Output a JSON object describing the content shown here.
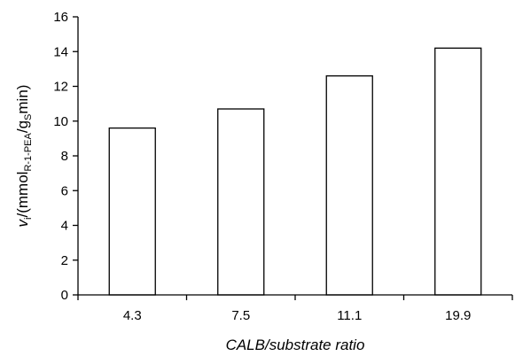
{
  "chart_data": {
    "type": "bar",
    "title": "",
    "categories": [
      "4.3",
      "7.5",
      "11.1",
      "19.9"
    ],
    "values": [
      9.6,
      10.7,
      12.6,
      14.2
    ],
    "xlabel": "CALB/substrate ratio",
    "ylabel": {
      "v": "v",
      "i": "i",
      "pre": "/(mmol",
      "sub": "R-1-PEA",
      "mid": "/g",
      "s": "S",
      "post": "min)"
    },
    "ylim": [
      0,
      16
    ],
    "yticks": [
      "0",
      "2",
      "4",
      "6",
      "8",
      "10",
      "12",
      "14",
      "16"
    ],
    "grid": false,
    "legend": "none",
    "bar_fill": "#ffffff",
    "bar_stroke": "#000000"
  }
}
